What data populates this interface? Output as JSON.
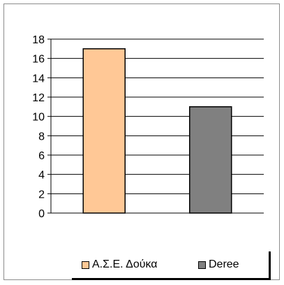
{
  "chart_data": {
    "type": "bar",
    "categories": [
      "Α.Σ.Ε. Δούκα",
      "Deree"
    ],
    "values": [
      17,
      11
    ],
    "colors": [
      "#FFC896",
      "#808080"
    ],
    "title": "",
    "xlabel": "",
    "ylabel": "",
    "ylim": [
      0,
      18
    ],
    "yticks": [
      "0",
      "2",
      "4",
      "6",
      "8",
      "10",
      "12",
      "14",
      "16",
      "18"
    ],
    "grid": true,
    "legend_position": "bottom",
    "legend": [
      {
        "label": "Α.Σ.Ε. Δούκα",
        "color": "#FFC896"
      },
      {
        "label": "Deree",
        "color": "#808080"
      }
    ]
  }
}
